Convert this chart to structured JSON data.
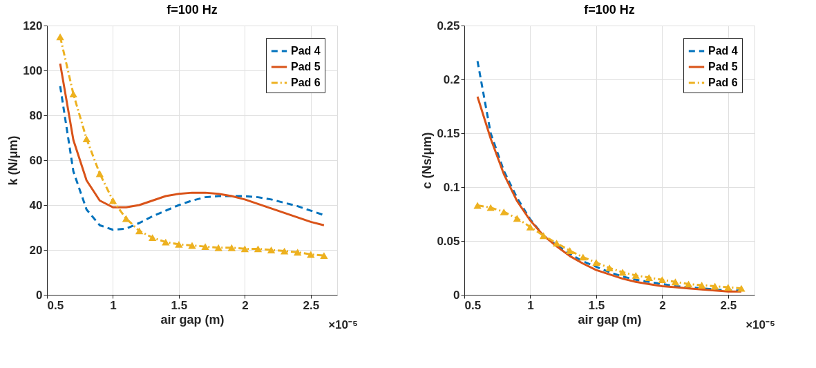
{
  "chart_data": [
    {
      "type": "line",
      "title": "f=100 Hz",
      "xlabel": "air gap (m)",
      "ylabel": "k (N/μm)",
      "annotations": [
        "×10⁻⁵"
      ],
      "x": [
        0.6,
        0.7,
        0.8,
        0.9,
        1.0,
        1.1,
        1.2,
        1.3,
        1.4,
        1.5,
        1.6,
        1.7,
        1.8,
        1.9,
        2.0,
        2.1,
        2.2,
        2.3,
        2.4,
        2.5,
        2.6
      ],
      "xlim": [
        0.5,
        2.7
      ],
      "xticks": [
        0.5,
        1,
        1.5,
        2,
        2.5
      ],
      "ylim": [
        0,
        120
      ],
      "yticks": [
        0,
        20,
        40,
        60,
        80,
        100,
        120
      ],
      "grid": true,
      "legend": "top right",
      "series": [
        {
          "name": "Pad 4",
          "color": "#0072bd",
          "line_style": "dashed",
          "marker": "none",
          "values": [
            93,
            55,
            38,
            31,
            29,
            29.5,
            32,
            35,
            37.5,
            40,
            42,
            43.5,
            44,
            44,
            44,
            43.5,
            42.5,
            41,
            39.5,
            37.5,
            35.5
          ]
        },
        {
          "name": "Pad 5",
          "color": "#d95319",
          "line_style": "solid",
          "marker": "none",
          "values": [
            103,
            69,
            51,
            42,
            39,
            39,
            40,
            42,
            44,
            45,
            45.5,
            45.5,
            45,
            44,
            42.5,
            40.5,
            38.5,
            36.5,
            34.5,
            32.5,
            31
          ]
        },
        {
          "name": "Pad 6",
          "color": "#edb120",
          "line_style": "dashdot",
          "marker": "triangle",
          "values": [
            115,
            89.5,
            69.5,
            54,
            42,
            34,
            28.5,
            25.5,
            23.5,
            22.5,
            22,
            21.5,
            21,
            21,
            20.5,
            20.5,
            20,
            19.5,
            19,
            18,
            17.5
          ]
        }
      ]
    },
    {
      "type": "line",
      "title": "f=100 Hz",
      "xlabel": "air gap (m)",
      "ylabel": "c (Ns/μm)",
      "annotations": [
        "×10⁻⁵"
      ],
      "x": [
        0.6,
        0.7,
        0.8,
        0.9,
        1.0,
        1.1,
        1.2,
        1.3,
        1.4,
        1.5,
        1.6,
        1.7,
        1.8,
        1.9,
        2.0,
        2.1,
        2.2,
        2.3,
        2.4,
        2.5,
        2.6
      ],
      "xlim": [
        0.5,
        2.7
      ],
      "xticks": [
        0.5,
        1,
        1.5,
        2,
        2.5
      ],
      "ylim": [
        0,
        0.25
      ],
      "yticks": [
        0,
        0.05,
        0.1,
        0.15,
        0.2,
        0.25
      ],
      "grid": true,
      "legend": "top right",
      "series": [
        {
          "name": "Pad 4",
          "color": "#0072bd",
          "line_style": "dashed",
          "marker": "none",
          "values": [
            0.217,
            0.15,
            0.115,
            0.09,
            0.07,
            0.055,
            0.046,
            0.038,
            0.031,
            0.026,
            0.021,
            0.017,
            0.014,
            0.012,
            0.01,
            0.008,
            0.007,
            0.006,
            0.005,
            0.004,
            0.004
          ]
        },
        {
          "name": "Pad 5",
          "color": "#d95319",
          "line_style": "solid",
          "marker": "none",
          "values": [
            0.184,
            0.145,
            0.112,
            0.087,
            0.069,
            0.055,
            0.045,
            0.036,
            0.029,
            0.023,
            0.019,
            0.015,
            0.012,
            0.01,
            0.008,
            0.007,
            0.006,
            0.005,
            0.004,
            0.003,
            0.003
          ]
        },
        {
          "name": "Pad 6",
          "color": "#edb120",
          "line_style": "dashdot",
          "marker": "triangle",
          "values": [
            0.083,
            0.081,
            0.077,
            0.071,
            0.063,
            0.055,
            0.048,
            0.041,
            0.035,
            0.03,
            0.025,
            0.021,
            0.018,
            0.016,
            0.014,
            0.012,
            0.01,
            0.009,
            0.008,
            0.007,
            0.006
          ]
        }
      ]
    }
  ]
}
